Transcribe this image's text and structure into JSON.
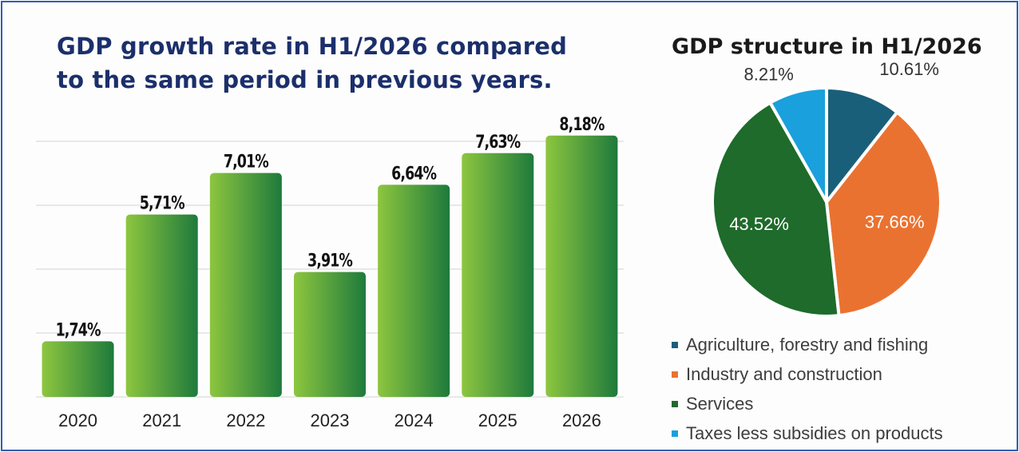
{
  "charts": {
    "growth": {
      "title_line1": "GDP growth rate in H1/2026 compared",
      "title_line2": "to the same period in previous years."
    },
    "structure": {
      "title": "GDP structure in H1/2026"
    }
  },
  "chart_data": [
    {
      "type": "bar",
      "title": "GDP growth rate in H1/2026 compared to the same period in previous years.",
      "categories": [
        "2020",
        "2021",
        "2022",
        "2023",
        "2024",
        "2025",
        "2026"
      ],
      "values": [
        1.74,
        5.71,
        7.01,
        3.91,
        6.64,
        7.63,
        8.18
      ],
      "data_labels": [
        "1,74%",
        "5,71%",
        "7,01%",
        "3,91%",
        "6,64%",
        "7,63%",
        "8,18%"
      ],
      "ylim": [
        0,
        8.2
      ],
      "grid": true,
      "xlabel": "",
      "ylabel": "",
      "bar_gradient": [
        "#8dc63f",
        "#1e7a3c"
      ]
    },
    {
      "type": "pie",
      "title": "GDP structure in H1/2026",
      "slices": [
        {
          "label": "Agriculture, forestry and fishing",
          "value": 10.61,
          "display": "10.61%",
          "color": "#1a5f7a"
        },
        {
          "label": "Industry and construction",
          "value": 37.66,
          "display": "37.66%",
          "color": "#ea7231"
        },
        {
          "label": "Services",
          "value": 43.52,
          "display": "43.52%",
          "color": "#1e6b2b"
        },
        {
          "label": "Taxes less subsidies on products",
          "value": 8.21,
          "display": "8.21%",
          "color": "#1aa0dc"
        }
      ],
      "legend_position": "bottom"
    }
  ]
}
